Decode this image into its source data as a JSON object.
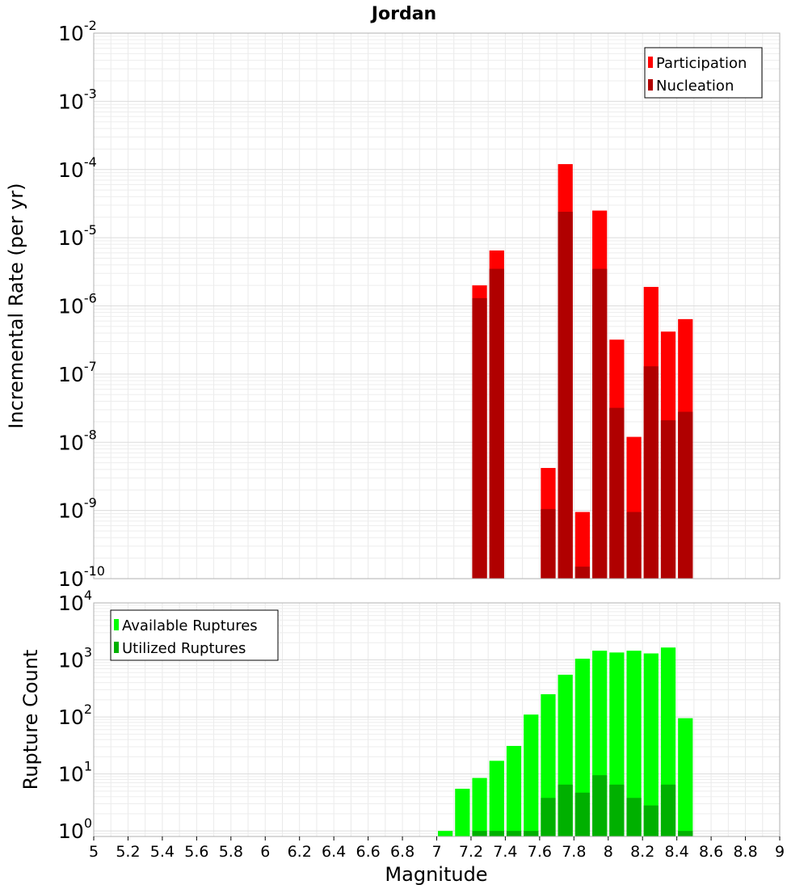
{
  "chart_data": {
    "title": "Jordan",
    "xlabel": "Magnitude",
    "xlim": [
      5,
      9
    ],
    "x_ticks": [
      "5",
      "5.2",
      "5.4",
      "5.6",
      "5.8",
      "6",
      "6.2",
      "6.4",
      "6.6",
      "6.8",
      "7",
      "7.2",
      "7.4",
      "7.6",
      "7.8",
      "8",
      "8.2",
      "8.4",
      "8.6",
      "8.8",
      "9"
    ],
    "bin_width": 0.1,
    "grid": true,
    "panels": [
      {
        "type": "bar",
        "ylabel": "Incremental Rate (per yr)",
        "y_scale": "log",
        "ylim": [
          1e-10,
          0.01
        ],
        "y_tick_exponents": [
          "-2",
          "-3",
          "-4",
          "-5",
          "-6",
          "-7",
          "-8",
          "-9",
          "-10"
        ],
        "legend_position": "top-right",
        "series": [
          {
            "name": "Participation",
            "color": "#ff0000",
            "x": [
              7.25,
              7.35,
              7.65,
              7.75,
              7.85,
              7.95,
              8.05,
              8.15,
              8.25,
              8.35,
              8.45
            ],
            "values": [
              2e-06,
              6.5e-06,
              4.2e-09,
              0.00012,
              9.5e-10,
              2.5e-05,
              3.2e-07,
              1.2e-08,
              1.9e-06,
              4.2e-07,
              6.4e-07
            ]
          },
          {
            "name": "Nucleation",
            "color": "#b00000",
            "x": [
              7.25,
              7.35,
              7.65,
              7.75,
              7.85,
              7.95,
              8.05,
              8.15,
              8.25,
              8.35,
              8.45
            ],
            "values": [
              1.3e-06,
              3.5e-06,
              1.05e-09,
              2.4e-05,
              1.5e-10,
              3.5e-06,
              3.2e-08,
              9.5e-10,
              1.3e-07,
              2.1e-08,
              2.8e-08
            ]
          }
        ]
      },
      {
        "type": "bar",
        "ylabel": "Rupture Count",
        "y_scale": "log",
        "ylim": [
          0.8,
          10000
        ],
        "y_tick_exponents": [
          "4",
          "3",
          "2",
          "1",
          "0"
        ],
        "legend_position": "top-left",
        "series": [
          {
            "name": "Available Ruptures",
            "color": "#00ff00",
            "x": [
              7.05,
              7.15,
              7.25,
              7.35,
              7.45,
              7.55,
              7.65,
              7.75,
              7.85,
              7.95,
              8.05,
              8.15,
              8.25,
              8.35,
              8.45
            ],
            "values": [
              1,
              5.5,
              8.5,
              17,
              31,
              110,
              250,
              550,
              1050,
              1450,
              1350,
              1450,
              1300,
              1650,
              95
            ]
          },
          {
            "name": "Utilized Ruptures",
            "color": "#00b000",
            "x": [
              7.25,
              7.35,
              7.45,
              7.55,
              7.65,
              7.75,
              7.85,
              7.95,
              8.05,
              8.15,
              8.25,
              8.35,
              8.45
            ],
            "values": [
              1,
              1,
              1,
              1,
              3.8,
              6.5,
              4.7,
              9.5,
              6.5,
              3.8,
              2.8,
              6.5,
              1
            ]
          }
        ]
      }
    ]
  }
}
